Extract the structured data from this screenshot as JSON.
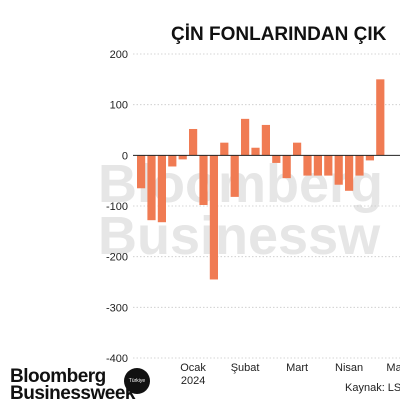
{
  "chart_data": {
    "type": "bar",
    "title": "ÇİN FONLARINDAN ÇIK",
    "watermark": [
      "Bloomberg",
      "Businessw"
    ],
    "ylim": [
      -400,
      200
    ],
    "yticks": [
      200,
      100,
      0,
      -100,
      -200,
      -300,
      -400
    ],
    "x_labels": [
      {
        "text": "Ocak",
        "sub": "2024",
        "idx": 5
      },
      {
        "text": "Şubat",
        "sub": "",
        "idx": 10
      },
      {
        "text": "Mart",
        "sub": "",
        "idx": 15
      },
      {
        "text": "Nisan",
        "sub": "",
        "idx": 20
      },
      {
        "text": "Mayıs",
        "sub": "",
        "idx": 25
      }
    ],
    "values": [
      -65,
      -128,
      -132,
      -22,
      -8,
      52,
      -98,
      -245,
      25,
      -82,
      72,
      15,
      60,
      -15,
      -45,
      25,
      -40,
      -40,
      -40,
      -58,
      -70,
      -40,
      -10,
      150
    ],
    "bar_color": "#f07b53",
    "grid": true,
    "source": "Kaynak: LSE"
  },
  "logo": {
    "line1": "Bloomberg",
    "line2": "Businessweek",
    "badge": "Türkiye"
  }
}
